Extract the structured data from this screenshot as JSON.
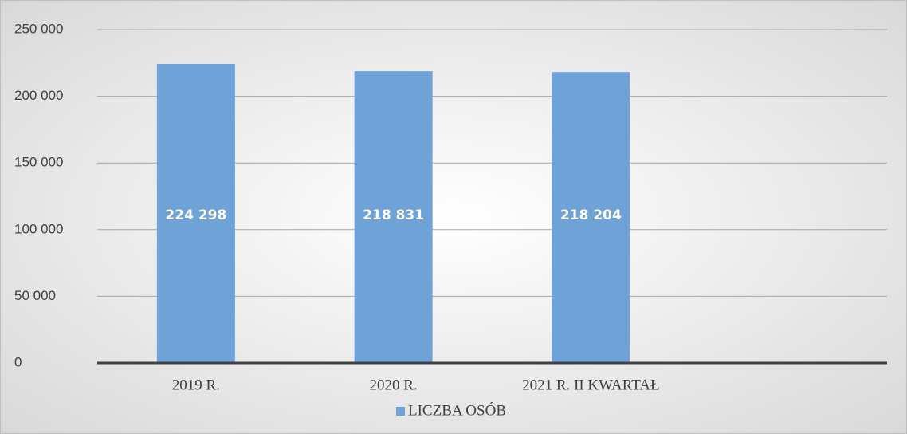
{
  "chart_data": {
    "type": "bar",
    "categories": [
      "2019 R.",
      "2020 R.",
      "2021 R. II KWARTAŁ",
      null
    ],
    "series": [
      {
        "name": "LICZBA OSÓB",
        "color": "#6fa3d8",
        "values": [
          224298,
          218831,
          218204,
          null
        ],
        "value_labels": [
          "224 298",
          "218 831",
          "218 204",
          null
        ]
      }
    ],
    "ylim": [
      0,
      250000
    ],
    "yticks": [
      0,
      {
        "value": 50000,
        "label": "50 000"
      },
      {
        "value": 100000,
        "label": "100 000"
      },
      {
        "value": 150000,
        "label": "150 000"
      },
      {
        "value": 200000,
        "label": "200 000"
      },
      {
        "value": 250000,
        "label": "250 000"
      }
    ],
    "grid": true,
    "legend": "bottom"
  }
}
